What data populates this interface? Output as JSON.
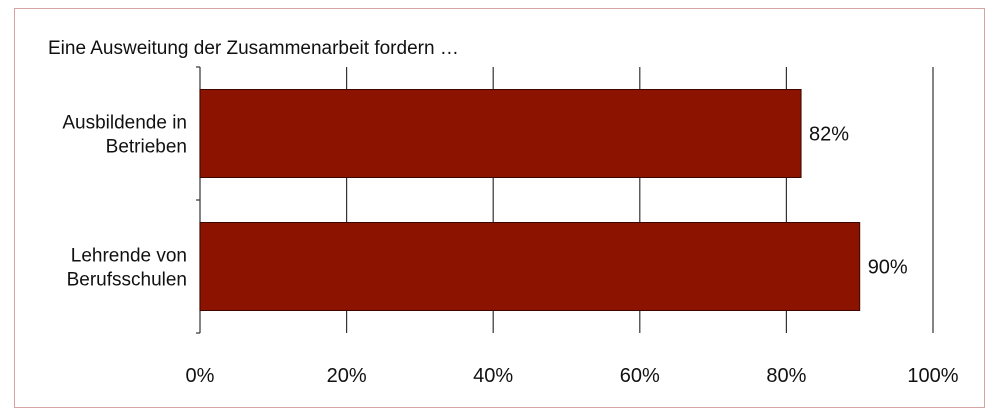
{
  "chart_data": {
    "type": "bar",
    "orientation": "horizontal",
    "title": "Eine Ausweitung der Zusammenarbeit fordern …",
    "categories": [
      [
        "Ausbildende in",
        "Betrieben"
      ],
      [
        "Lehrende von",
        "Berufsschulen"
      ]
    ],
    "values": [
      82,
      90
    ],
    "value_labels": [
      "82%",
      "90%"
    ],
    "xlim": [
      0,
      100
    ],
    "x_ticks": [
      0,
      20,
      40,
      60,
      80,
      100
    ],
    "x_tick_labels": [
      "0%",
      "20%",
      "40%",
      "60%",
      "80%",
      "100%"
    ],
    "grid": "vertical",
    "colors": {
      "bar": "#8B1300",
      "bar_edge": "#3a0800",
      "frame": "#d9a3a3"
    }
  }
}
